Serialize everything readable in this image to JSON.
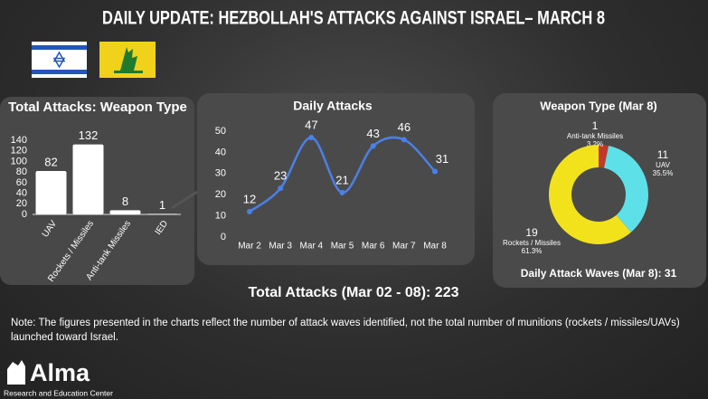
{
  "title": "DAILY UPDATE: HEZBOLLAH'S ATTACKS AGAINST ISRAEL– MARCH 8",
  "chart_data": [
    {
      "type": "bar",
      "title": "Total Attacks: Weapon Type",
      "categories": [
        "UAV",
        "Rockets / Missiles",
        "Anti-tank Missiles",
        "IED"
      ],
      "values": [
        82,
        132,
        8,
        1
      ],
      "color": "#ffffff",
      "ylim": [
        0,
        140
      ],
      "yticks": [
        0,
        20,
        40,
        60,
        80,
        100,
        120,
        140
      ]
    },
    {
      "type": "line",
      "title": "Daily Attacks",
      "categories": [
        "Mar 2",
        "Mar 3",
        "Mar 4",
        "Mar 5",
        "Mar 6",
        "Mar 7",
        "Mar 8"
      ],
      "values": [
        12,
        23,
        47,
        21,
        43,
        46,
        31
      ],
      "color": "#4a80e8",
      "ylim": [
        0,
        50
      ],
      "yticks": [
        0,
        10,
        20,
        30,
        40,
        50
      ]
    },
    {
      "type": "donut",
      "title": "Weapon Type (Mar 8)",
      "categories": [
        "Anti-tank Missiles",
        "UAV",
        "Rockets / Missiles"
      ],
      "values": [
        1,
        11,
        19
      ],
      "percentages": [
        {
          "value": 3.2,
          "label": "3.2%"
        },
        {
          "value": 35.5,
          "label": "35.5%"
        },
        {
          "value": 61.3,
          "label": "61.3%"
        }
      ],
      "colors": [
        "#c0392b",
        "#5ee0e8",
        "#f2e21c"
      ],
      "footer": "Daily Attack Waves (Mar 8): 31"
    }
  ],
  "total": "Total Attacks (Mar 02 - 08): 223",
  "note": "Note: The figures presented in the charts reflect the number of attack waves identified, not the total number of munitions (rockets / missiles/UAVs) launched toward Israel.",
  "logo": {
    "name": "Alma",
    "subtitle": "Research and Education Center"
  }
}
